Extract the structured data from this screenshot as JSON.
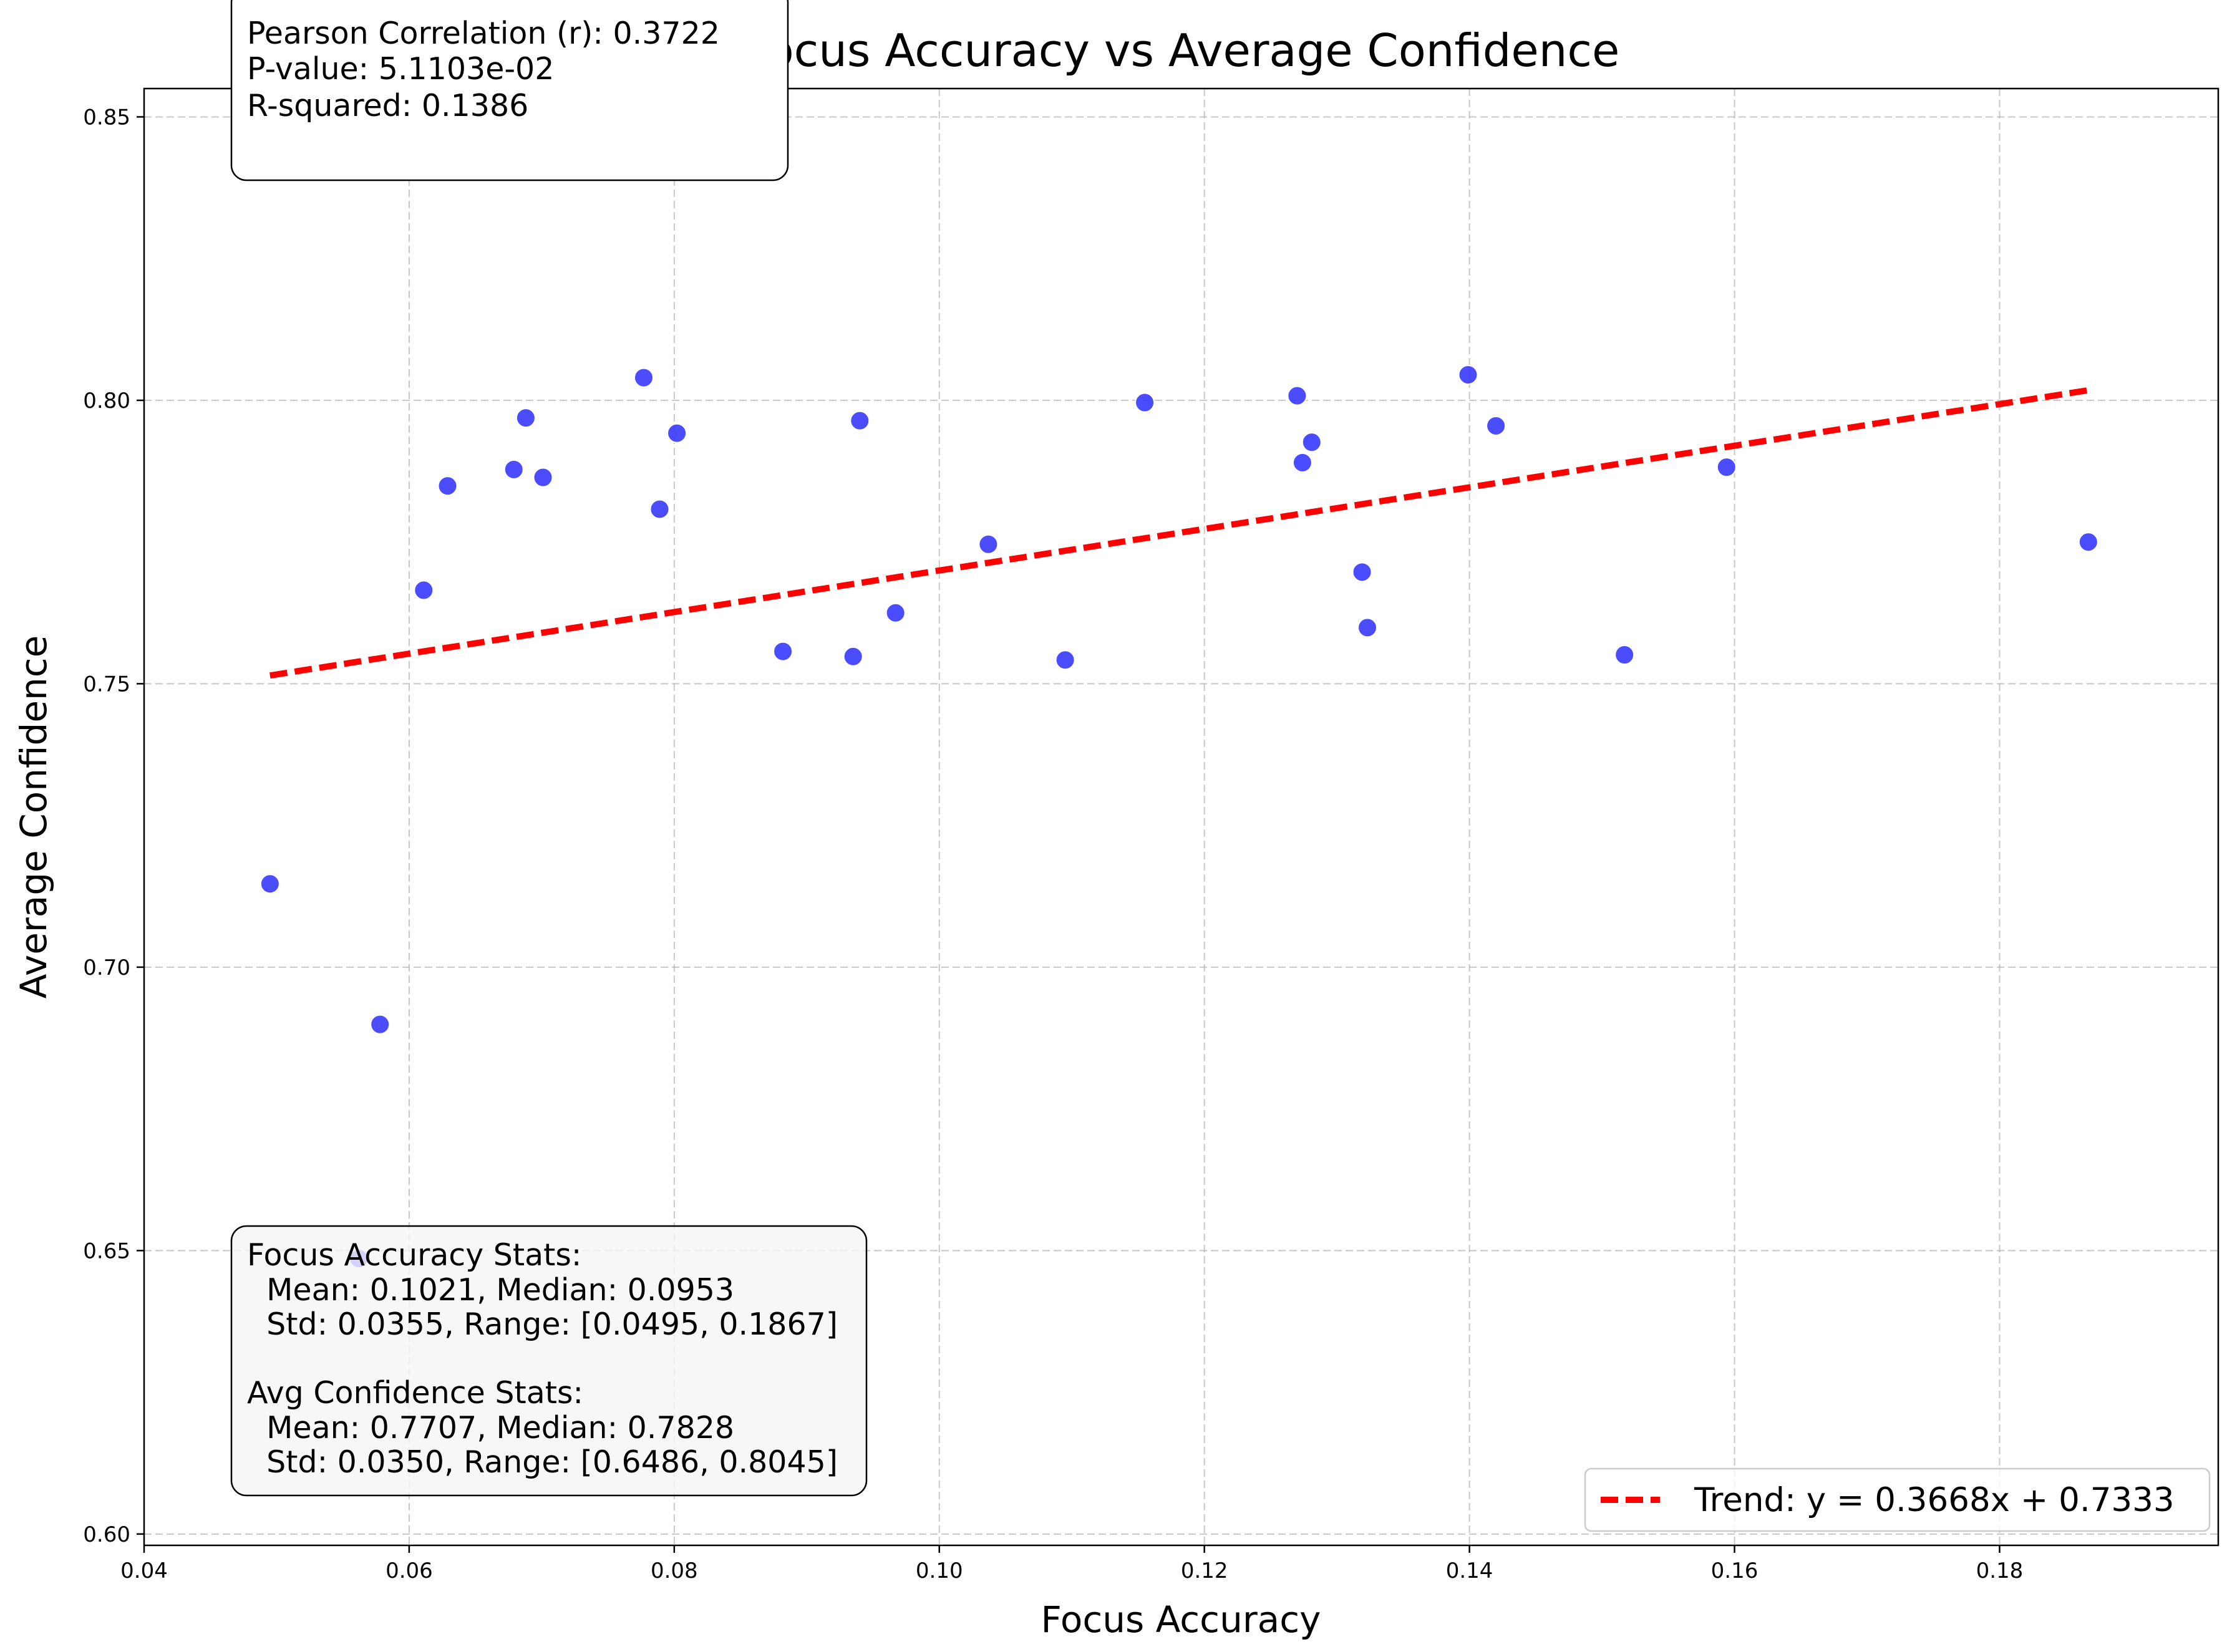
{
  "chart_data": {
    "type": "scatter",
    "title": "Focus Accuracy vs Average Confidence",
    "xlabel": "Focus Accuracy",
    "ylabel": "Average Confidence",
    "xlim": [
      0.04,
      0.1965
    ],
    "ylim": [
      0.598,
      0.855
    ],
    "xticks": [
      "0.04",
      "0.06",
      "0.08",
      "0.10",
      "0.12",
      "0.14",
      "0.16",
      "0.18"
    ],
    "yticks": [
      "0.60",
      "0.65",
      "0.70",
      "0.75",
      "0.80",
      "0.85"
    ],
    "grid": true,
    "point_color": "#3333ff",
    "trend_color": "#ff0000",
    "points": [
      {
        "x": 0.0495,
        "y": 0.7147
      },
      {
        "x": 0.0562,
        "y": 0.6486
      },
      {
        "x": 0.0578,
        "y": 0.6899
      },
      {
        "x": 0.0611,
        "y": 0.7665
      },
      {
        "x": 0.0629,
        "y": 0.7849
      },
      {
        "x": 0.0679,
        "y": 0.7878
      },
      {
        "x": 0.0688,
        "y": 0.7969
      },
      {
        "x": 0.0701,
        "y": 0.7864
      },
      {
        "x": 0.0777,
        "y": 0.804
      },
      {
        "x": 0.0789,
        "y": 0.7808
      },
      {
        "x": 0.0802,
        "y": 0.7942
      },
      {
        "x": 0.0882,
        "y": 0.7557
      },
      {
        "x": 0.0935,
        "y": 0.7548
      },
      {
        "x": 0.094,
        "y": 0.7964
      },
      {
        "x": 0.0967,
        "y": 0.7625
      },
      {
        "x": 0.1037,
        "y": 0.7746
      },
      {
        "x": 0.1095,
        "y": 0.7542
      },
      {
        "x": 0.1155,
        "y": 0.7996
      },
      {
        "x": 0.127,
        "y": 0.8008
      },
      {
        "x": 0.1274,
        "y": 0.789
      },
      {
        "x": 0.1281,
        "y": 0.7926
      },
      {
        "x": 0.1319,
        "y": 0.7697
      },
      {
        "x": 0.1323,
        "y": 0.7599
      },
      {
        "x": 0.1399,
        "y": 0.8045
      },
      {
        "x": 0.142,
        "y": 0.7955
      },
      {
        "x": 0.1517,
        "y": 0.7551
      },
      {
        "x": 0.1594,
        "y": 0.7882
      },
      {
        "x": 0.1867,
        "y": 0.775
      }
    ],
    "trend": {
      "slope": 0.3668,
      "intercept": 0.7333,
      "x_range": [
        0.0495,
        0.1867
      ],
      "legend_label": "Trend: y = 0.3668x + 0.7333",
      "legend_position": "lower-right"
    },
    "stats_box": {
      "lines": [
        "Pearson Correlation (r): 0.3722",
        "P-value: 5.1103e-02",
        "R-squared: 0.1386"
      ]
    },
    "summary_box": {
      "lines": [
        "Focus Accuracy Stats:",
        "  Mean: 0.1021, Median: 0.0953",
        "  Std: 0.0355, Range: [0.0495, 0.1867]",
        "",
        "Avg Confidence Stats:",
        "  Mean: 0.7707, Median: 0.7828",
        "  Std: 0.0350, Range: [0.6486, 0.8045]"
      ]
    }
  }
}
